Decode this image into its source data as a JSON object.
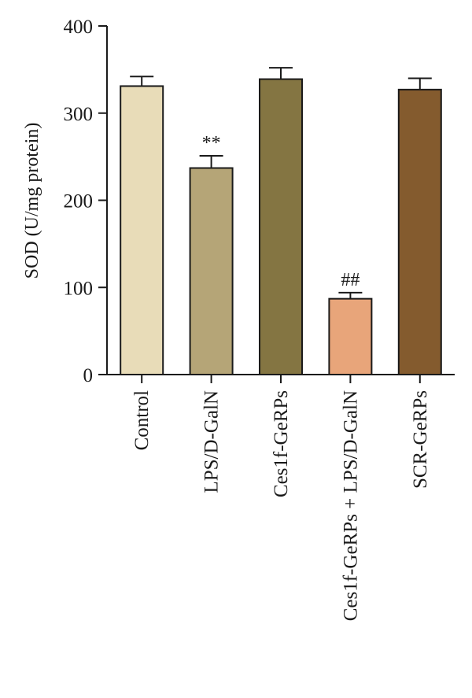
{
  "chart_data": {
    "type": "bar",
    "title": "",
    "xlabel": "",
    "ylabel": "SOD (U/mg protein)",
    "ylim": [
      0,
      400
    ],
    "yticks": [
      0,
      100,
      200,
      300,
      400
    ],
    "grid": false,
    "categories": [
      "Control",
      "LPS/D-GalN",
      "Ces1f-GeRPs",
      "Ces1f-GeRPs + LPS/D-GalN",
      "SCR-GeRPs"
    ],
    "values": [
      331,
      237,
      339,
      87,
      327
    ],
    "errors": [
      11,
      14,
      13,
      7,
      13
    ],
    "annotations": [
      "",
      "**",
      "",
      "##",
      ""
    ],
    "colors": [
      "#E8DCB8",
      "#B5A577",
      "#847542",
      "#E8A57A",
      "#845B2E"
    ]
  }
}
